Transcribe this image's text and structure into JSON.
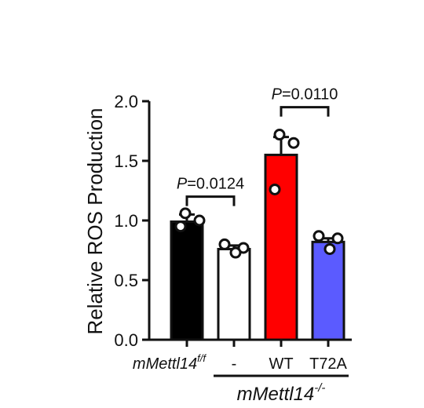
{
  "chart_data": {
    "type": "bar",
    "ylabel": "Relative ROS Production",
    "ylim": [
      0,
      2.0
    ],
    "yticks": [
      "0.0",
      "0.5",
      "1.0",
      "1.5",
      "2.0"
    ],
    "grid": false,
    "categories": [
      {
        "label": "mMettl14",
        "superscript": "f/f",
        "italic": true
      },
      {
        "label": "-",
        "superscript": "",
        "italic": false
      },
      {
        "label": "WT",
        "superscript": "",
        "italic": false
      },
      {
        "label": "T72A",
        "superscript": "",
        "italic": false
      }
    ],
    "values": [
      0.99,
      0.76,
      1.55,
      0.82
    ],
    "errors": [
      0.06,
      0.03,
      0.15,
      0.03
    ],
    "points": [
      [
        1.06,
        1.0,
        0.95
      ],
      [
        0.8,
        0.77,
        0.73
      ],
      [
        1.72,
        1.65,
        1.26
      ],
      [
        0.87,
        0.85,
        0.76
      ]
    ],
    "colors": [
      "#000000",
      "#ffffff",
      "#ff0000",
      "#5b5bff"
    ],
    "group": {
      "label": "mMettl14",
      "superscript": "-/-",
      "span": [
        1,
        3
      ]
    },
    "comparisons": [
      {
        "from": 0,
        "to": 1,
        "p_italic": "P",
        "p_value": "=0.0124",
        "level": 1.2
      },
      {
        "from": 2,
        "to": 3,
        "p_italic": "P",
        "p_value": "=0.0110",
        "level": 1.95
      }
    ]
  }
}
